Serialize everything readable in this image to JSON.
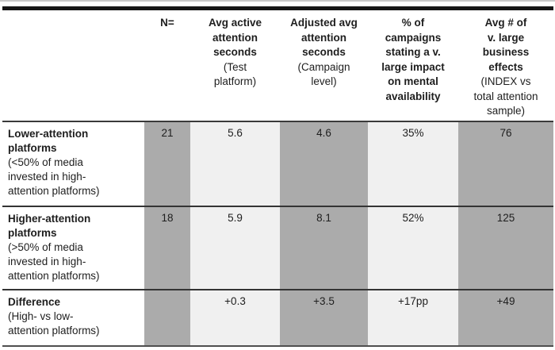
{
  "colors": {
    "text": "#1e1e1e",
    "hairline": "#c9c9c9",
    "bar": "#161616",
    "line-strong": "#3a3a3a",
    "line": "#343434",
    "line-bottom": "#4f4f4f",
    "cell-dark": "#ababab",
    "cell-light": "#f0f0f0"
  },
  "header": {
    "columns": [
      {
        "title": "",
        "note": ""
      },
      {
        "title": "N=",
        "note": ""
      },
      {
        "title": "Avg active\nattention\nseconds",
        "note": "(Test\nplatform)"
      },
      {
        "title": "Adjusted avg\nattention\nseconds",
        "note": "(Campaign\nlevel)"
      },
      {
        "title": "% of\ncampaigns\nstating a v.\nlarge impact\non mental\navailability",
        "note": ""
      },
      {
        "title": "Avg # of\nv. large\nbusiness\neffects",
        "note": "(INDEX vs\ntotal attention\nsample)"
      }
    ]
  },
  "rows": [
    {
      "label": "Lower-attention\nplatforms",
      "note": "(<50% of media\ninvested in high-\nattention platforms)",
      "values": [
        "21",
        "5.6",
        "4.6",
        "35%",
        "76"
      ]
    },
    {
      "label": "Higher-attention\nplatforms",
      "note": "(>50% of media\ninvested in high-\nattention platforms)",
      "values": [
        "18",
        "5.9",
        "8.1",
        "52%",
        "125"
      ]
    },
    {
      "label": "Difference",
      "note": "(High- vs low-\nattention platforms)",
      "values": [
        "",
        "+0.3",
        "+3.5",
        "+17pp",
        "+49"
      ]
    }
  ],
  "chart_data": {
    "type": "table",
    "columns": [
      "",
      "N=",
      "Avg active attention seconds (Test platform)",
      "Adjusted avg attention seconds (Campaign level)",
      "% of campaigns stating a v. large impact on mental availability",
      "Avg # of v. large business effects (INDEX vs total attention sample)"
    ],
    "rows": [
      {
        "label": "Lower-attention platforms (<50% of media invested in high-attention platforms)",
        "n": 21,
        "avg_active_attention_seconds": 5.6,
        "adjusted_avg_attention_seconds": 4.6,
        "pct_campaigns_v_large_impact_mental_availability": "35%",
        "avg_v_large_business_effects_index": 76
      },
      {
        "label": "Higher-attention platforms (>50% of media invested in high-attention platforms)",
        "n": 18,
        "avg_active_attention_seconds": 5.9,
        "adjusted_avg_attention_seconds": 8.1,
        "pct_campaigns_v_large_impact_mental_availability": "52%",
        "avg_v_large_business_effects_index": 125
      },
      {
        "label": "Difference (High- vs low-attention platforms)",
        "n": null,
        "avg_active_attention_seconds": "+0.3",
        "adjusted_avg_attention_seconds": "+3.5",
        "pct_campaigns_v_large_impact_mental_availability": "+17pp",
        "avg_v_large_business_effects_index": "+49"
      }
    ]
  }
}
